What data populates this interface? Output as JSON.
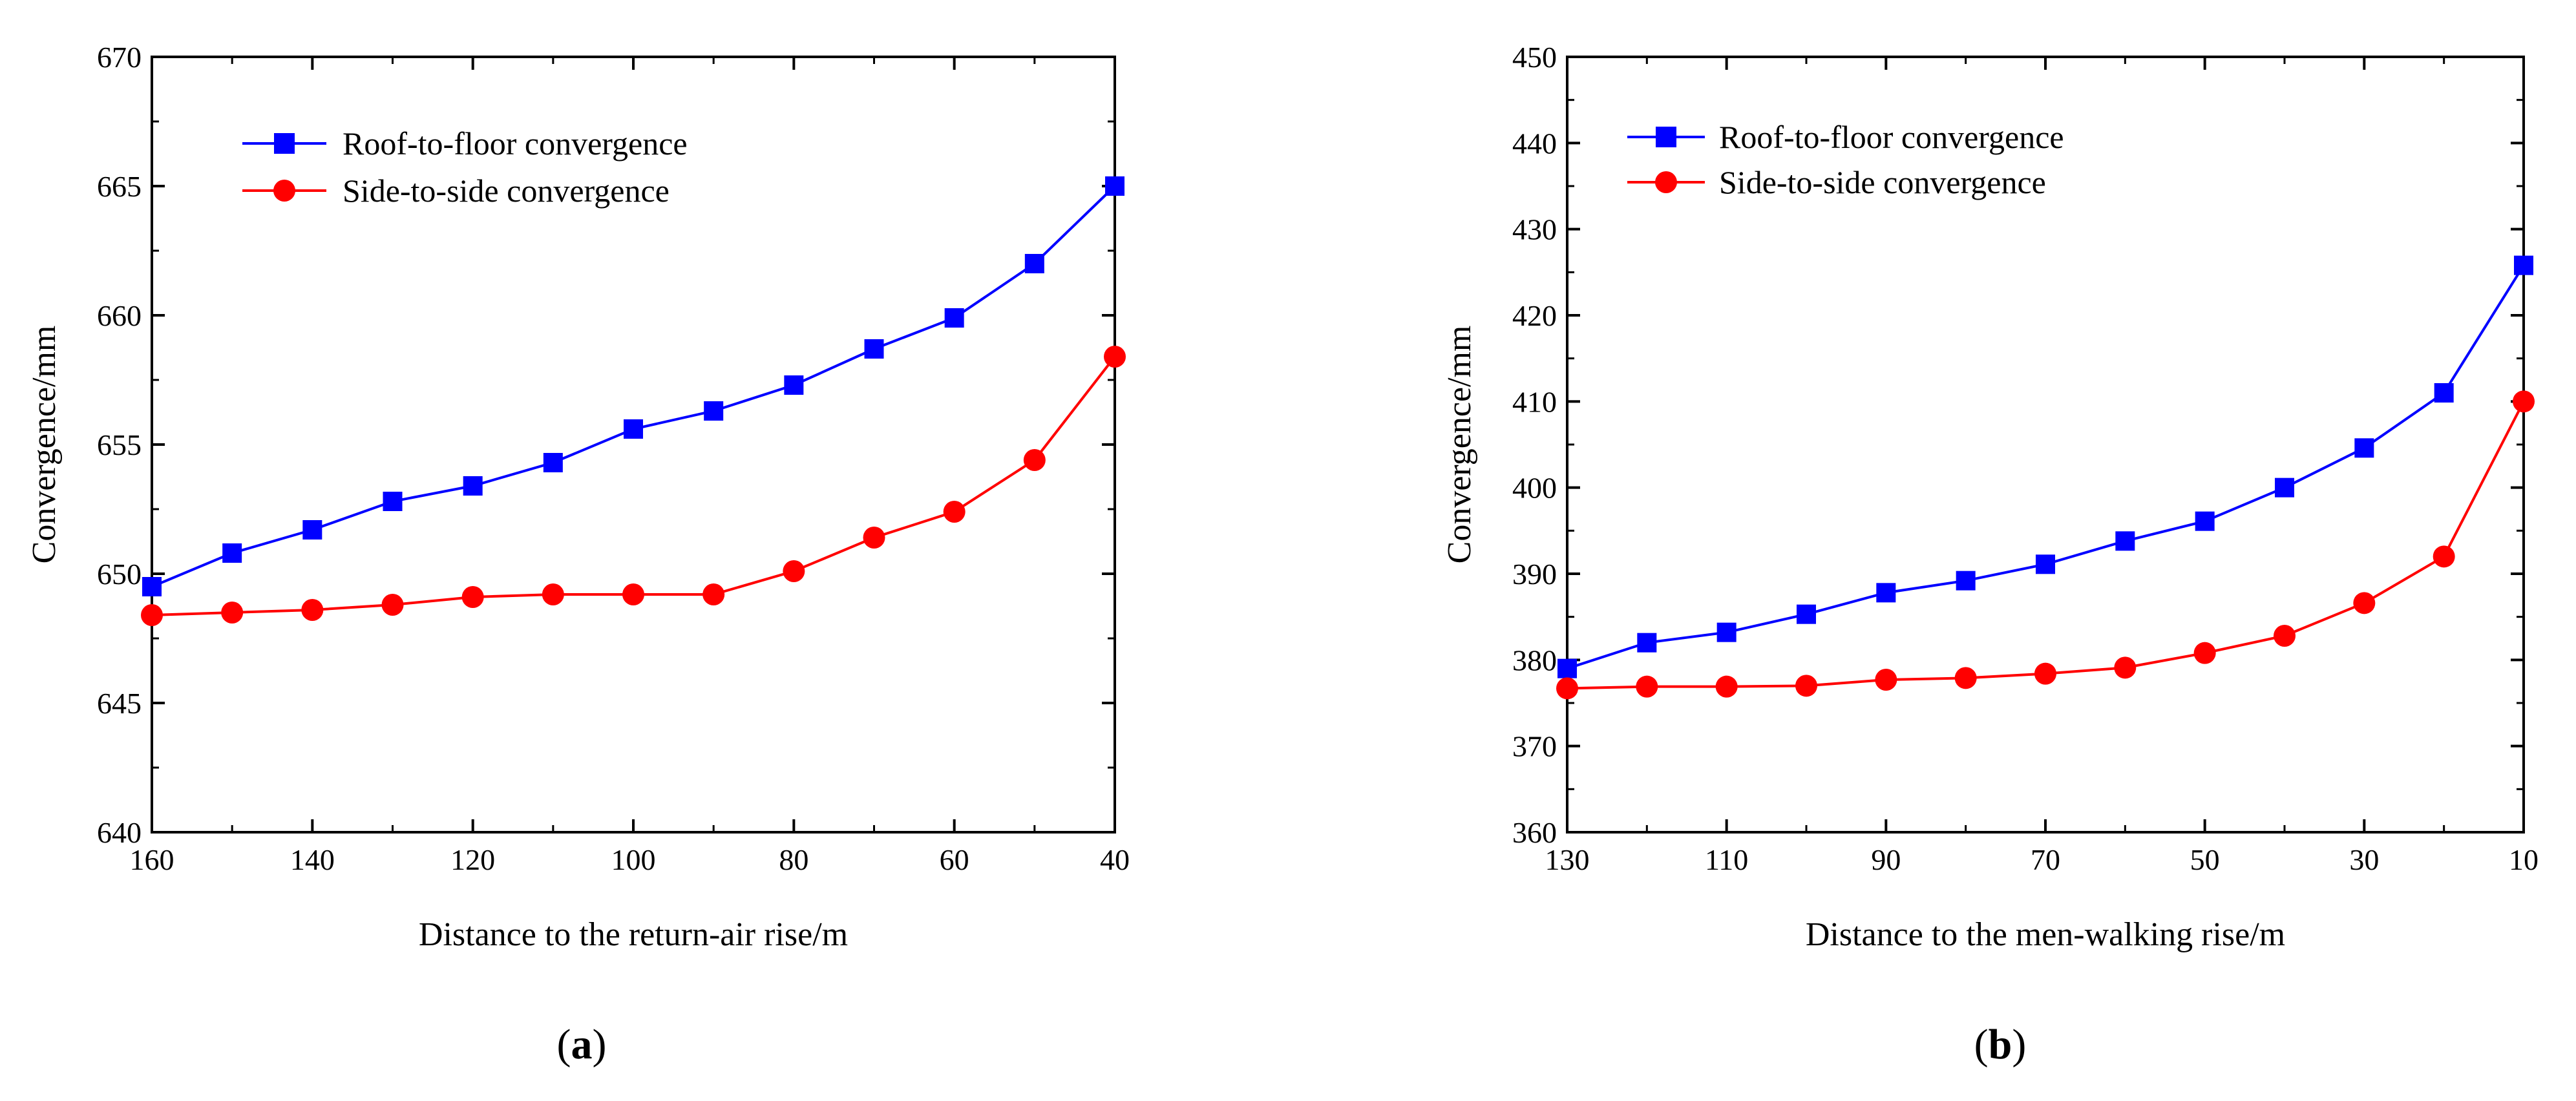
{
  "chart_data": [
    {
      "type": "line",
      "panel_label": "a",
      "xlabel": "Distance to the return-air rise/m",
      "ylabel": "Convergence/mm",
      "xlim": [
        160,
        40
      ],
      "ylim": [
        640,
        670
      ],
      "xticks": [
        160,
        140,
        120,
        100,
        80,
        60,
        40
      ],
      "yticks": [
        640,
        645,
        650,
        655,
        660,
        665,
        670
      ],
      "x": [
        160,
        150,
        140,
        130,
        120,
        110,
        100,
        90,
        80,
        70,
        60,
        50,
        40
      ],
      "series": [
        {
          "name": "Roof-to-floor convergence",
          "color": "#0000ff",
          "marker": "square",
          "values": [
            649.5,
            650.8,
            651.7,
            652.8,
            653.4,
            654.3,
            655.6,
            656.3,
            657.3,
            658.7,
            659.9,
            662.0,
            665.0
          ]
        },
        {
          "name": "Side-to-side convergence",
          "color": "#ff0000",
          "marker": "circle",
          "values": [
            648.4,
            648.5,
            648.6,
            648.8,
            649.1,
            649.2,
            649.2,
            649.2,
            650.1,
            651.4,
            652.4,
            654.4,
            658.4
          ]
        }
      ],
      "legend": "top-left"
    },
    {
      "type": "line",
      "panel_label": "b",
      "xlabel": "Distance to the men-walking rise/m",
      "ylabel": "Convergence/mm",
      "xlim": [
        130,
        10
      ],
      "ylim": [
        360,
        450
      ],
      "xticks": [
        130,
        110,
        90,
        70,
        50,
        30,
        10
      ],
      "yticks": [
        360,
        370,
        380,
        390,
        400,
        410,
        420,
        430,
        440,
        450
      ],
      "x": [
        130,
        120,
        110,
        100,
        90,
        80,
        70,
        60,
        50,
        40,
        30,
        20,
        10
      ],
      "series": [
        {
          "name": "Roof-to-floor convergence",
          "color": "#0000ff",
          "marker": "square",
          "values": [
            379.0,
            382.0,
            383.2,
            385.3,
            387.8,
            389.2,
            391.1,
            393.8,
            396.1,
            400.0,
            404.6,
            411.0,
            425.8
          ]
        },
        {
          "name": "Side-to-side convergence",
          "color": "#ff0000",
          "marker": "circle",
          "values": [
            376.7,
            376.9,
            376.9,
            377.0,
            377.7,
            377.9,
            378.4,
            379.1,
            380.8,
            382.8,
            386.6,
            392.0,
            410.0
          ]
        }
      ],
      "legend": "top-left"
    }
  ]
}
